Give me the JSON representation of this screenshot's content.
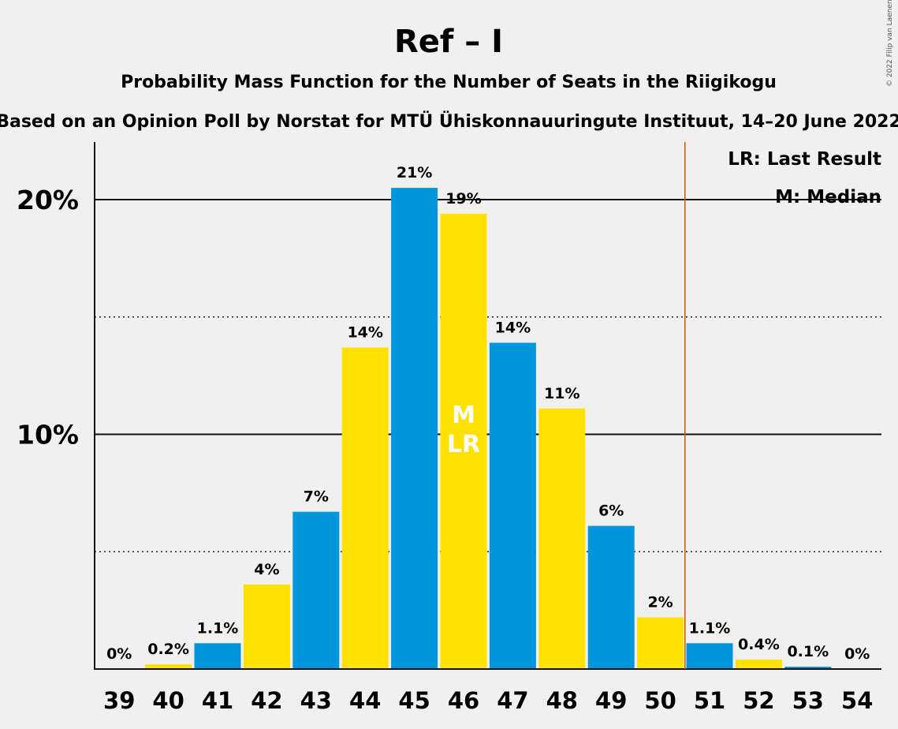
{
  "chart_data": {
    "type": "bar",
    "title": "Ref – I",
    "subtitle": "Probability Mass Function for the Number of Seats in the Riigikogu",
    "subtitle2": "Based on an Opinion Poll by Norstat for MTÜ Ühiskonnauuringute Instituut, 14–20 June 2022",
    "copyright": "© 2022 Filip van Laenen",
    "categories": [
      "39",
      "40",
      "41",
      "42",
      "43",
      "44",
      "45",
      "46",
      "47",
      "48",
      "49",
      "50",
      "51",
      "52",
      "53",
      "54"
    ],
    "values": [
      0,
      0.2,
      1.1,
      3.6,
      6.7,
      13.7,
      20.5,
      19.4,
      13.9,
      11.1,
      6.1,
      2.2,
      1.1,
      0.4,
      0.1,
      0
    ],
    "data_labels": [
      "0%",
      "0.2%",
      "1.1%",
      "4%",
      "7%",
      "14%",
      "21%",
      "19%",
      "14%",
      "11%",
      "6%",
      "2%",
      "1.1%",
      "0.4%",
      "0.1%",
      "0%"
    ],
    "ylim": [
      0,
      22.5
    ],
    "yticks": [
      10,
      20
    ],
    "ytick_labels": [
      "10%",
      "20%"
    ],
    "minor_gridlines": [
      5,
      15
    ],
    "majority_line_after": "50",
    "median_seat": "46",
    "last_result_seat": "46",
    "median_marker": "M",
    "last_result_marker": "LR",
    "legend": [
      "LR: Last Result",
      "M: Median"
    ],
    "colors": {
      "blue": "#0096db",
      "yellow": "#ffe100",
      "majority_line": "#cc5500",
      "background": "#f0f0f0"
    }
  }
}
